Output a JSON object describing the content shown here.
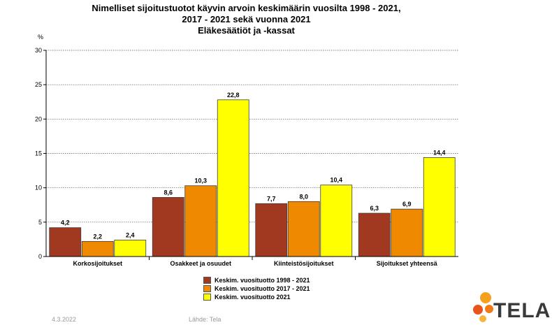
{
  "chart_data": {
    "type": "bar",
    "title_lines": [
      "Nimelliset sijoitustuotot käyvin arvoin keskimäärin vuosilta 1998 - 2021,",
      "2017 - 2021 sekä vuonna 2021",
      "Eläkesäätiöt ja -kassat"
    ],
    "ylabel": "%",
    "ylim": [
      0,
      30
    ],
    "yticks": [
      0,
      5,
      10,
      15,
      20,
      25,
      30
    ],
    "grid": true,
    "legend_position": "bottom-center",
    "categories": [
      "Korkosijoitukset",
      "Osakkeet ja osuudet",
      "Kiinteistösijoitukset",
      "Sijoitukset yhteensä"
    ],
    "series": [
      {
        "name": "Keskim. vuosituotto 1998 - 2021",
        "color": "#a0391f",
        "values": [
          4.2,
          8.6,
          7.7,
          6.3
        ],
        "labels": [
          "4,2",
          "8,6",
          "7,7",
          "6,3"
        ]
      },
      {
        "name": "Keskim. vuosituotto 2017 - 2021",
        "color": "#ef8a00",
        "values": [
          2.2,
          10.3,
          8.0,
          6.9
        ],
        "labels": [
          "2,2",
          "10,3",
          "8,0",
          "6,9"
        ]
      },
      {
        "name": "Keskim. vuosituotto 2021",
        "color": "#ffff00",
        "values": [
          2.4,
          22.8,
          10.4,
          14.4
        ],
        "labels": [
          "2,4",
          "22,8",
          "10,4",
          "14,4"
        ]
      }
    ]
  },
  "footer": {
    "date": "4.3.2022",
    "source": "Lähde: Tela",
    "logo_text": "TELA"
  }
}
